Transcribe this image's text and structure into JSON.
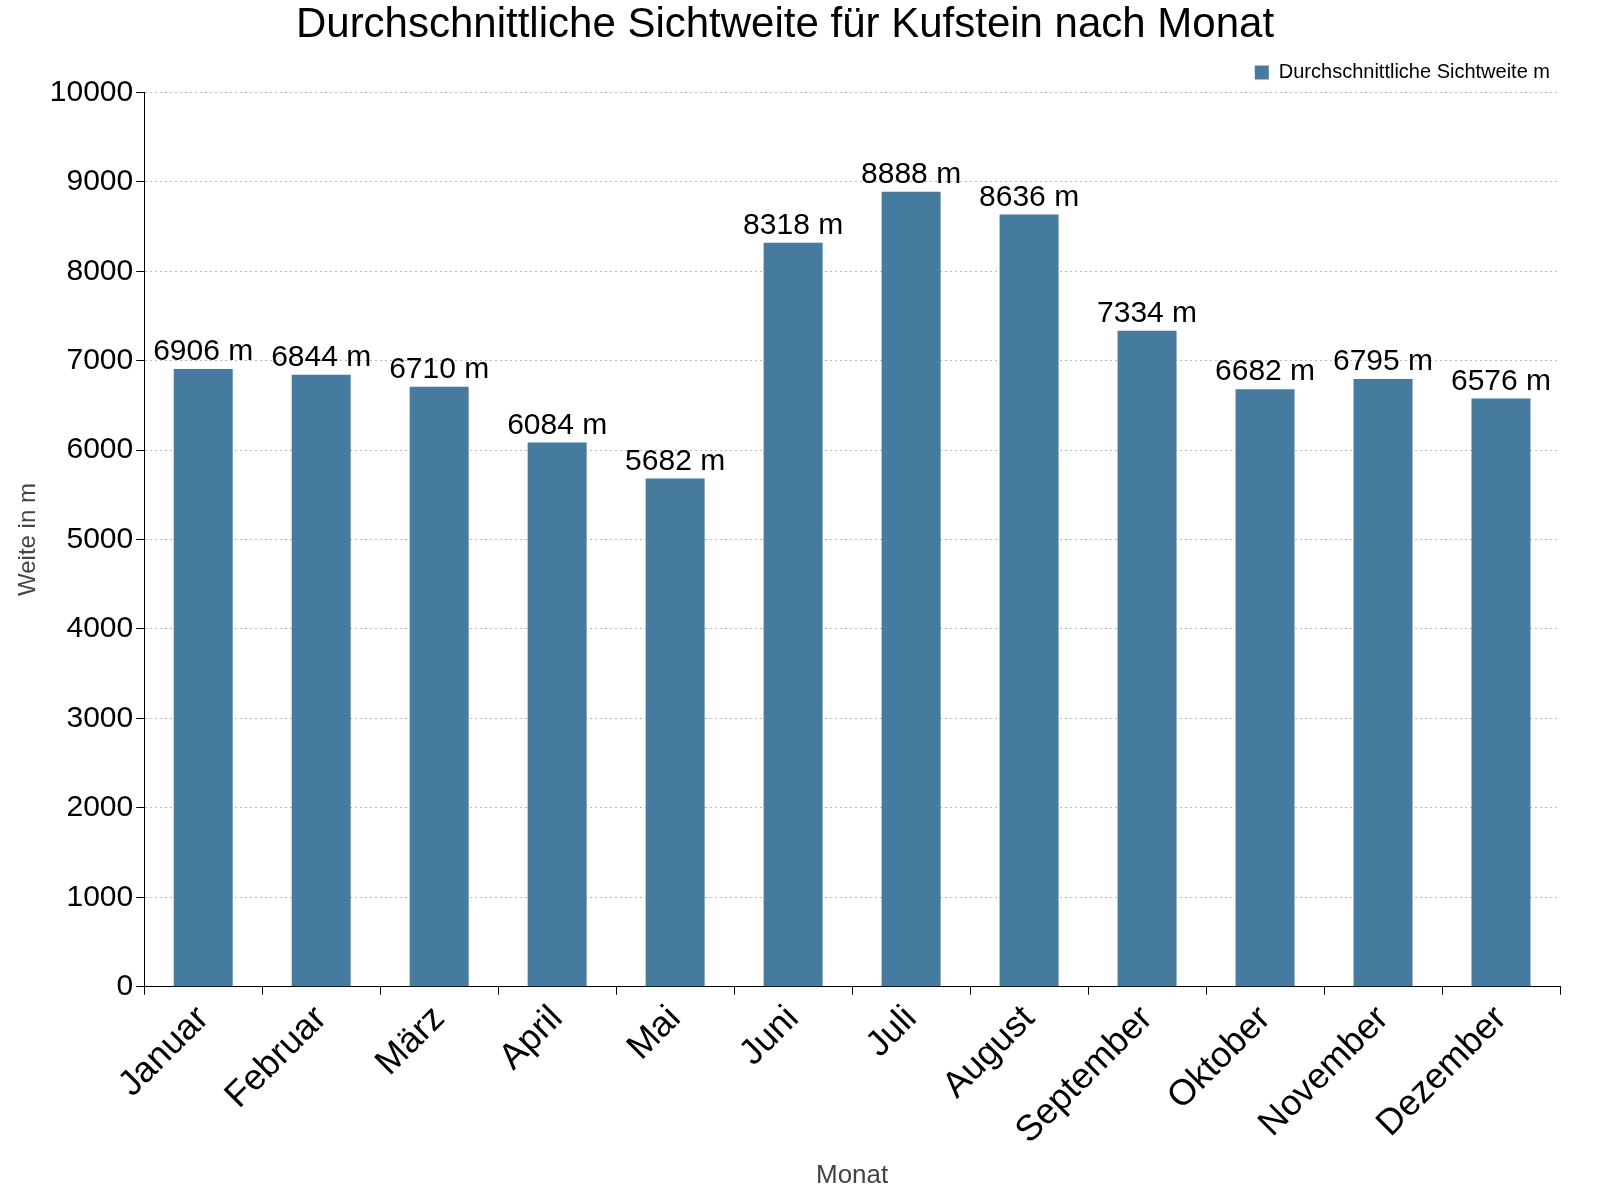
{
  "chart_data": {
    "type": "bar",
    "title": "Durchschnittliche Sichtweite für Kufstein nach Monat",
    "xlabel": "Monat",
    "ylabel": "Weite in m",
    "categories": [
      "Januar",
      "Februar",
      "März",
      "April",
      "Mai",
      "Juni",
      "Juli",
      "August",
      "September",
      "Oktober",
      "November",
      "Dezember"
    ],
    "series": [
      {
        "name": "Durchschnittliche Sichtweite m",
        "color": "#467ba0",
        "values": [
          6906,
          6844,
          6710,
          6084,
          5682,
          8318,
          8888,
          8636,
          7334,
          6682,
          6795,
          6576
        ],
        "value_labels": [
          "6906 m",
          "6844 m",
          "6710 m",
          "6084 m",
          "5682 m",
          "8318 m",
          "8888 m",
          "8636 m",
          "7334 m",
          "6682 m",
          "6795 m",
          "6576 m"
        ]
      }
    ],
    "ylim": [
      0,
      10000
    ],
    "yticks": [
      0,
      1000,
      2000,
      3000,
      4000,
      5000,
      6000,
      7000,
      8000,
      9000,
      10000
    ],
    "grid": "y",
    "legend": "top right"
  }
}
